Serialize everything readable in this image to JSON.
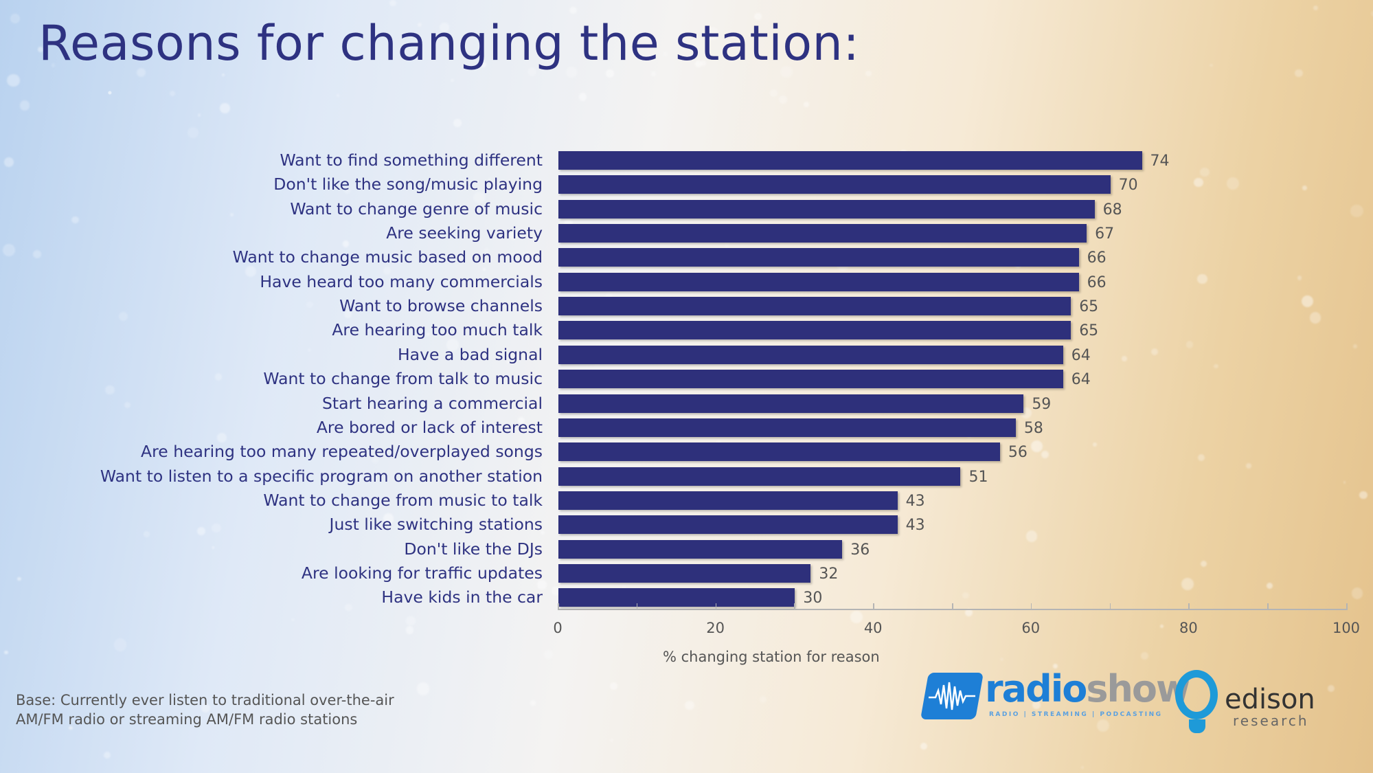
{
  "title": "Reasons for changing the station:",
  "chart_data": {
    "type": "bar",
    "orientation": "horizontal",
    "title": "Reasons for changing the station:",
    "xlabel": "% changing station for reason",
    "ylabel": "",
    "xlim": [
      0,
      100
    ],
    "xticks": [
      0,
      20,
      40,
      60,
      80,
      100
    ],
    "grid": false,
    "legend": null,
    "bar_color": "#2e307b",
    "categories": [
      "Want to find something different",
      "Don't like the song/music playing",
      "Want to change genre of music",
      "Are seeking variety",
      "Want to change music based on mood",
      "Have heard too many commercials",
      "Want to browse channels",
      "Are hearing too much talk",
      "Have a bad signal",
      "Want to change from talk to music",
      "Start hearing a commercial",
      "Are bored or lack of interest",
      "Are hearing too many repeated/overplayed songs",
      "Want to listen to a specific program on another station",
      "Want to change from music to talk",
      "Just like switching stations",
      "Don't like the DJs",
      "Are looking for traffic updates",
      "Have kids in the car"
    ],
    "values": [
      74,
      70,
      68,
      67,
      66,
      66,
      65,
      65,
      64,
      64,
      59,
      58,
      56,
      51,
      43,
      43,
      36,
      32,
      30
    ]
  },
  "axis": {
    "tick_labels": [
      "0",
      "20",
      "40",
      "60",
      "80",
      "100"
    ],
    "title": "% changing station for reason"
  },
  "footnote": {
    "line1": "Base: Currently ever listen to traditional over-the-air",
    "line2": "AM/FM radio or streaming AM/FM radio stations"
  },
  "logos": {
    "radioshow": {
      "radio": "radio",
      "show": "show",
      "tagline": "RADIO | STREAMING | PODCASTING"
    },
    "edison": {
      "name": "edison",
      "sub": "research"
    }
  },
  "colors": {
    "title": "#2e3281",
    "bar": "#2e307b",
    "value_text": "#555555",
    "radioshow_blue": "#1e7fd6",
    "edison_blue": "#1e9ad8"
  }
}
